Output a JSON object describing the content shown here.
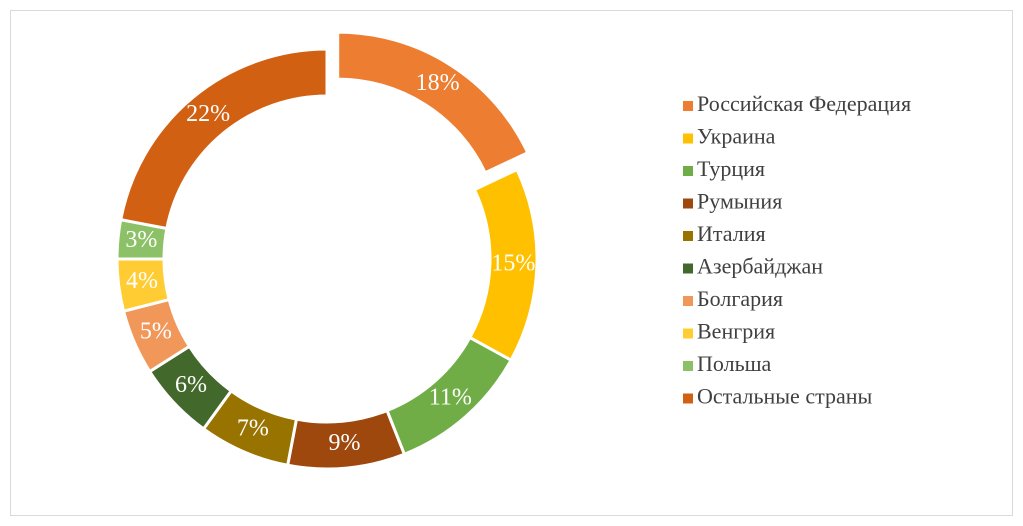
{
  "chart_data": {
    "type": "donut",
    "categories": [
      "Российская Федерация",
      "Украина",
      "Турция",
      "Румыния",
      "Италия",
      "Азербайджан",
      "Болгария",
      "Венгрия",
      "Польша",
      "Остальные страны"
    ],
    "values": [
      18,
      15,
      11,
      9,
      7,
      6,
      5,
      4,
      3,
      22
    ],
    "value_labels": [
      "18%",
      "15%",
      "11%",
      "9%",
      "7%",
      "6%",
      "5%",
      "4%",
      "3%",
      "22%"
    ],
    "colors": [
      "#ED7D31",
      "#FFC000",
      "#70AD47",
      "#9E480E",
      "#997300",
      "#43682B",
      "#F1975A",
      "#FFCD33",
      "#8CC168",
      "#D26012"
    ],
    "legend": "right"
  }
}
